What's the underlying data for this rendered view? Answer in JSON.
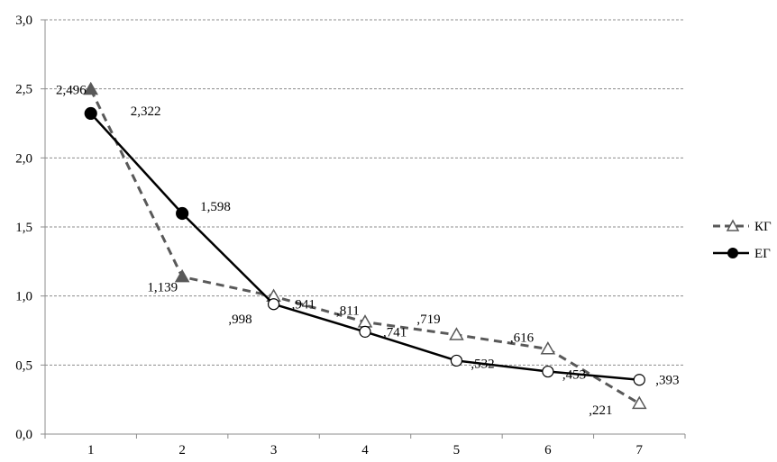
{
  "chart_data": {
    "type": "line",
    "categories": [
      "1",
      "2",
      "3",
      "4",
      "5",
      "6",
      "7"
    ],
    "ylim": [
      0,
      3.0
    ],
    "yticks": [
      "0,0",
      "0,5",
      "1,0",
      "1,5",
      "2,0",
      "2,5",
      "3,0"
    ],
    "ytick_values": [
      0,
      0.5,
      1.0,
      1.5,
      2.0,
      2.5,
      3.0
    ],
    "grid": "horizontal dashed",
    "legend_position": "right",
    "series": [
      {
        "name": "КГ",
        "values": [
          2.496,
          1.139,
          0.998,
          0.811,
          0.719,
          0.616,
          0.221
        ],
        "labels": [
          "2,496",
          "1,139",
          ",998",
          ",811",
          ",719",
          ",616",
          ",221"
        ],
        "style": "dashed",
        "marker": "triangle",
        "color": "#595959"
      },
      {
        "name": "ЕГ",
        "values": [
          2.322,
          1.598,
          0.941,
          0.741,
          0.532,
          0.453,
          0.393
        ],
        "labels": [
          "2,322",
          "1,598",
          ",941",
          ",741",
          ",532",
          ",453",
          ",393"
        ],
        "style": "solid",
        "marker": "circle",
        "color": "#000000"
      }
    ]
  }
}
